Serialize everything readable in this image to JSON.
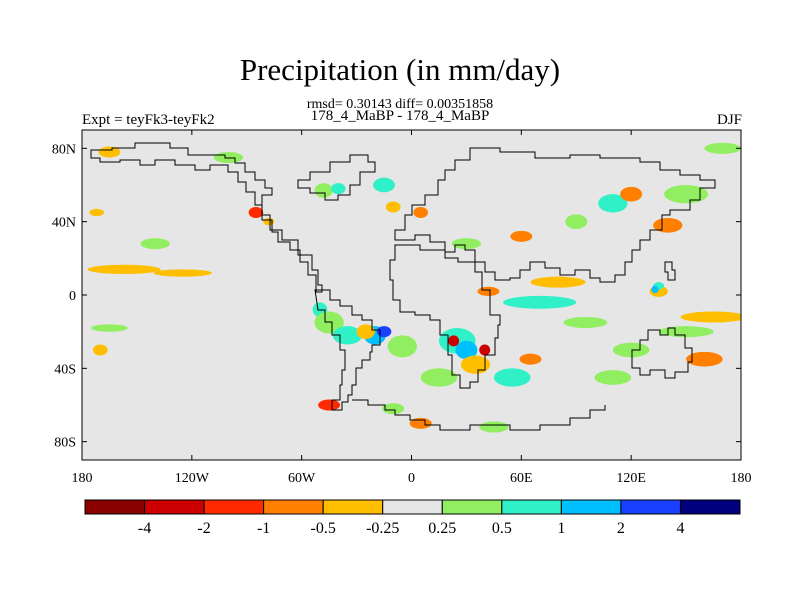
{
  "title": "Precipitation (in mm/day)",
  "stats": "rmsd= 0.30143 diff= 0.00351858",
  "experiment_pair": "178_4_MaBP - 178_4_MaBP",
  "experiment_label": "Expt = teyFk3-teyFk2",
  "season": "DJF",
  "chart_data": {
    "type": "heatmap",
    "variable": "Precipitation difference",
    "units": "mm/day",
    "projection": "cylindrical equidistant",
    "lon_range": [
      -180,
      180
    ],
    "lat_range": [
      -90,
      90
    ],
    "lat_ticks": [
      {
        "value": 80,
        "label": "80N"
      },
      {
        "value": 40,
        "label": "40N"
      },
      {
        "value": 0,
        "label": "0"
      },
      {
        "value": -40,
        "label": "40S"
      },
      {
        "value": -80,
        "label": "80S"
      }
    ],
    "lon_ticks": [
      {
        "value": -180,
        "label": "180"
      },
      {
        "value": -120,
        "label": "120W"
      },
      {
        "value": -60,
        "label": "60W"
      },
      {
        "value": 0,
        "label": "0"
      },
      {
        "value": 60,
        "label": "60E"
      },
      {
        "value": 120,
        "label": "120E"
      },
      {
        "value": 180,
        "label": "180"
      }
    ],
    "colorbar": {
      "levels": [
        "-4",
        "-2",
        "-1",
        "-0.5",
        "-0.25",
        "0.25",
        "0.5",
        "1",
        "2",
        "4"
      ],
      "colors": [
        "#8b0000",
        "#cc0000",
        "#ff2a00",
        "#ff7f00",
        "#ffbf00",
        "#e6e6e6",
        "#90ee60",
        "#30f0c8",
        "#00bfff",
        "#1a40ff",
        "#00007f"
      ]
    },
    "anomaly_regions": [
      {
        "lon": -157,
        "lat": 14,
        "rlon": 20,
        "rlat": 2.5,
        "level": 4
      },
      {
        "lon": -125,
        "lat": 12,
        "rlon": 16,
        "rlat": 2,
        "level": 4
      },
      {
        "lon": -165,
        "lat": -18,
        "rlon": 10,
        "rlat": 2,
        "level": 6
      },
      {
        "lon": -140,
        "lat": 28,
        "rlon": 8,
        "rlat": 3,
        "level": 6
      },
      {
        "lon": -85,
        "lat": 45,
        "rlon": 4,
        "rlat": 3,
        "level": 2
      },
      {
        "lon": -78,
        "lat": 40,
        "rlon": 3,
        "rlat": 2,
        "level": 4
      },
      {
        "lon": -48,
        "lat": 57,
        "rlon": 5,
        "rlat": 4,
        "level": 6
      },
      {
        "lon": -40,
        "lat": 58,
        "rlon": 4,
        "rlat": 3,
        "level": 7
      },
      {
        "lon": -15,
        "lat": 60,
        "rlon": 6,
        "rlat": 4,
        "level": 7
      },
      {
        "lon": -10,
        "lat": 48,
        "rlon": 4,
        "rlat": 3,
        "level": 4
      },
      {
        "lon": 5,
        "lat": 45,
        "rlon": 4,
        "rlat": 3,
        "level": 3
      },
      {
        "lon": 80,
        "lat": 7,
        "rlon": 15,
        "rlat": 3,
        "level": 4
      },
      {
        "lon": 42,
        "lat": 2,
        "rlon": 6,
        "rlat": 2.5,
        "level": 3
      },
      {
        "lon": 70,
        "lat": -4,
        "rlon": 20,
        "rlat": 3.5,
        "level": 7
      },
      {
        "lon": 95,
        "lat": -15,
        "rlon": 12,
        "rlat": 3,
        "level": 6
      },
      {
        "lon": 165,
        "lat": -12,
        "rlon": 18,
        "rlat": 3,
        "level": 4
      },
      {
        "lon": 150,
        "lat": -20,
        "rlon": 15,
        "rlat": 3,
        "level": 6
      },
      {
        "lon": 135,
        "lat": 2,
        "rlon": 5,
        "rlat": 3,
        "level": 4
      },
      {
        "lon": 135,
        "lat": 5,
        "rlon": 3,
        "rlat": 2,
        "level": 7
      },
      {
        "lon": 133,
        "lat": 3,
        "rlon": 2,
        "rlat": 2,
        "level": 8
      },
      {
        "lon": -50,
        "lat": -8,
        "rlon": 4,
        "rlat": 4,
        "level": 7
      },
      {
        "lon": -45,
        "lat": -15,
        "rlon": 8,
        "rlat": 6,
        "level": 6
      },
      {
        "lon": -35,
        "lat": -22,
        "rlon": 8,
        "rlat": 5,
        "level": 7
      },
      {
        "lon": -20,
        "lat": -22,
        "rlon": 6,
        "rlat": 5,
        "level": 8
      },
      {
        "lon": -15,
        "lat": -20,
        "rlon": 4,
        "rlat": 3,
        "level": 9
      },
      {
        "lon": -5,
        "lat": -28,
        "rlon": 8,
        "rlat": 6,
        "level": 6
      },
      {
        "lon": 25,
        "lat": -25,
        "rlon": 10,
        "rlat": 7,
        "level": 7
      },
      {
        "lon": 30,
        "lat": -30,
        "rlon": 6,
        "rlat": 5,
        "level": 8
      },
      {
        "lon": 23,
        "lat": -25,
        "rlon": 3,
        "rlat": 3,
        "level": 1
      },
      {
        "lon": 40,
        "lat": -30,
        "rlon": 3,
        "rlat": 3,
        "level": 1
      },
      {
        "lon": 35,
        "lat": -38,
        "rlon": 8,
        "rlat": 5,
        "level": 4
      },
      {
        "lon": 55,
        "lat": -45,
        "rlon": 10,
        "rlat": 5,
        "level": 7
      },
      {
        "lon": 15,
        "lat": -45,
        "rlon": 10,
        "rlat": 5,
        "level": 6
      },
      {
        "lon": -25,
        "lat": -20,
        "rlon": 5,
        "rlat": 4,
        "level": 4
      },
      {
        "lon": -45,
        "lat": -60,
        "rlon": 6,
        "rlat": 3,
        "level": 2
      },
      {
        "lon": -10,
        "lat": -62,
        "rlon": 6,
        "rlat": 3,
        "level": 6
      },
      {
        "lon": 5,
        "lat": -70,
        "rlon": 6,
        "rlat": 3,
        "level": 3
      },
      {
        "lon": 45,
        "lat": -72,
        "rlon": 8,
        "rlat": 3,
        "level": 6
      },
      {
        "lon": -165,
        "lat": 78,
        "rlon": 6,
        "rlat": 3,
        "level": 4
      },
      {
        "lon": -100,
        "lat": 75,
        "rlon": 8,
        "rlat": 3,
        "level": 6
      },
      {
        "lon": 170,
        "lat": 80,
        "rlon": 10,
        "rlat": 3,
        "level": 6
      },
      {
        "lon": 110,
        "lat": 50,
        "rlon": 8,
        "rlat": 5,
        "level": 7
      },
      {
        "lon": 150,
        "lat": 55,
        "rlon": 12,
        "rlat": 5,
        "level": 6
      },
      {
        "lon": 140,
        "lat": 38,
        "rlon": 8,
        "rlat": 4,
        "level": 3
      },
      {
        "lon": 90,
        "lat": 40,
        "rlon": 6,
        "rlat": 4,
        "level": 6
      },
      {
        "lon": 120,
        "lat": 55,
        "rlon": 6,
        "rlat": 4,
        "level": 3
      },
      {
        "lon": 30,
        "lat": 28,
        "rlon": 8,
        "rlat": 3,
        "level": 6
      },
      {
        "lon": 60,
        "lat": 32,
        "rlon": 6,
        "rlat": 3,
        "level": 3
      },
      {
        "lon": 120,
        "lat": -30,
        "rlon": 10,
        "rlat": 4,
        "level": 6
      },
      {
        "lon": 160,
        "lat": -35,
        "rlon": 10,
        "rlat": 4,
        "level": 3
      },
      {
        "lon": 110,
        "lat": -45,
        "rlon": 10,
        "rlat": 4,
        "level": 6
      },
      {
        "lon": -172,
        "lat": 45,
        "rlon": 4,
        "rlat": 2,
        "level": 4
      },
      {
        "lon": -170,
        "lat": -30,
        "rlon": 4,
        "rlat": 3,
        "level": 4
      },
      {
        "lon": 65,
        "lat": -35,
        "rlon": 6,
        "rlat": 3,
        "level": 3
      }
    ]
  }
}
